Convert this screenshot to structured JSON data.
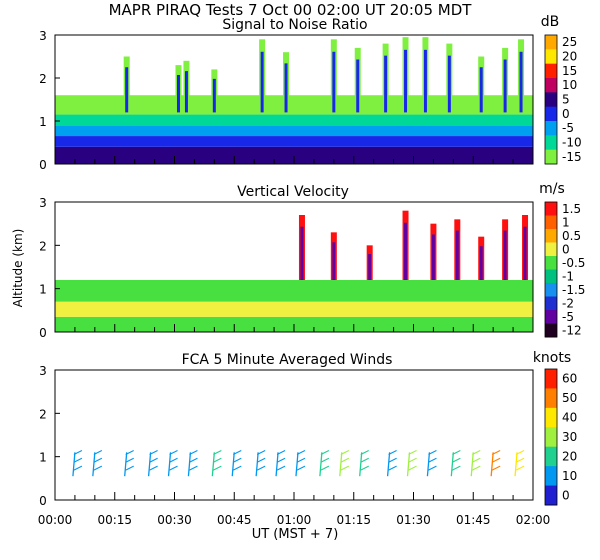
{
  "title": "MAPR PIRAQ Tests   7 Oct 00   02:00 UT   20:05   MDT",
  "shared_axes": {
    "x_label": "UT   (MST + 7)",
    "x_ticks": [
      "00:00",
      "00:15",
      "00:30",
      "00:45",
      "01:00",
      "01:15",
      "01:30",
      "01:45",
      "02:00"
    ],
    "x_range_minutes": [
      0,
      120
    ],
    "y_label": "Altitude (km)",
    "y_ticks": [
      "0",
      "1",
      "2",
      "3"
    ],
    "y_range_km": [
      0,
      3
    ]
  },
  "chart_data": [
    {
      "type": "heatmap",
      "title": "Signal to Noise Ratio",
      "unit": "dB",
      "colorbar": {
        "labels": [
          "25",
          "20",
          "15",
          "10",
          "5",
          "0",
          "-5",
          "-10",
          "-15"
        ],
        "colors": [
          "#ffa800",
          "#ffe800",
          "#ff2000",
          "#c00060",
          "#280080",
          "#1828e8",
          "#00a0f0",
          "#00d898",
          "#80f040"
        ]
      },
      "layers": [
        {
          "alt_km": [
            0.0,
            0.4
          ],
          "color": "#280080"
        },
        {
          "alt_km": [
            0.4,
            0.65
          ],
          "color": "#1828e8"
        },
        {
          "alt_km": [
            0.65,
            0.9
          ],
          "color": "#00a0f0"
        },
        {
          "alt_km": [
            0.9,
            1.15
          ],
          "color": "#00d898"
        },
        {
          "alt_km": [
            1.15,
            1.6
          ],
          "color": "#80f040"
        }
      ],
      "plumes": [
        {
          "t": 18,
          "top": 2.5
        },
        {
          "t": 31,
          "top": 2.3
        },
        {
          "t": 33,
          "top": 2.4
        },
        {
          "t": 40,
          "top": 2.2
        },
        {
          "t": 52,
          "top": 2.9
        },
        {
          "t": 58,
          "top": 2.6
        },
        {
          "t": 70,
          "top": 2.9
        },
        {
          "t": 76,
          "top": 2.7
        },
        {
          "t": 83,
          "top": 2.8
        },
        {
          "t": 88,
          "top": 2.95
        },
        {
          "t": 93,
          "top": 2.95
        },
        {
          "t": 99,
          "top": 2.8
        },
        {
          "t": 107,
          "top": 2.5
        },
        {
          "t": 113,
          "top": 2.7
        },
        {
          "t": 117,
          "top": 2.9
        }
      ]
    },
    {
      "type": "heatmap",
      "title": "Vertical Velocity",
      "unit": "m/s",
      "colorbar": {
        "labels": [
          "1.5",
          "1",
          "0.5",
          "0",
          "-0.5",
          "-1",
          "-1.5",
          "-2",
          "-5",
          "-12"
        ],
        "colors": [
          "#ff1010",
          "#ff6000",
          "#ffa800",
          "#f0f040",
          "#48e040",
          "#00c080",
          "#1890f0",
          "#2030d0",
          "#6000a0",
          "#200020"
        ]
      },
      "layers": [
        {
          "alt_km": [
            0.0,
            0.35
          ],
          "color": "#48e040"
        },
        {
          "alt_km": [
            0.35,
            0.7
          ],
          "color": "#f0f040"
        },
        {
          "alt_km": [
            0.7,
            1.2
          ],
          "color": "#48e040"
        }
      ],
      "plumes": [
        {
          "t": 62,
          "top": 2.7
        },
        {
          "t": 70,
          "top": 2.3
        },
        {
          "t": 79,
          "top": 2.0
        },
        {
          "t": 88,
          "top": 2.8
        },
        {
          "t": 95,
          "top": 2.5
        },
        {
          "t": 101,
          "top": 2.6
        },
        {
          "t": 107,
          "top": 2.2
        },
        {
          "t": 113,
          "top": 2.6
        },
        {
          "t": 118,
          "top": 2.7
        }
      ]
    },
    {
      "type": "wind_barbs",
      "title": "FCA 5 Minute Averaged Winds",
      "unit": "knots",
      "colorbar": {
        "labels": [
          "60",
          "50",
          "40",
          "30",
          "20",
          "10",
          "0"
        ],
        "colors": [
          "#ff2000",
          "#ff8000",
          "#ffe800",
          "#a0f040",
          "#20d090",
          "#0098f0",
          "#2020d0"
        ]
      },
      "profiles": [
        {
          "t": 5,
          "speed_kt": 8
        },
        {
          "t": 10,
          "speed_kt": 8
        },
        {
          "t": 18,
          "speed_kt": 10
        },
        {
          "t": 24,
          "speed_kt": 8
        },
        {
          "t": 29,
          "speed_kt": 10
        },
        {
          "t": 34,
          "speed_kt": 12
        },
        {
          "t": 40,
          "speed_kt": 15
        },
        {
          "t": 45,
          "speed_kt": 8
        },
        {
          "t": 51,
          "speed_kt": 8
        },
        {
          "t": 56,
          "speed_kt": 10
        },
        {
          "t": 61,
          "speed_kt": 10
        },
        {
          "t": 67,
          "speed_kt": 20
        },
        {
          "t": 72,
          "speed_kt": 30
        },
        {
          "t": 77,
          "speed_kt": 20
        },
        {
          "t": 84,
          "speed_kt": 10
        },
        {
          "t": 89,
          "speed_kt": 25
        },
        {
          "t": 94,
          "speed_kt": 10
        },
        {
          "t": 100,
          "speed_kt": 20
        },
        {
          "t": 105,
          "speed_kt": 30
        },
        {
          "t": 110,
          "speed_kt": 45
        },
        {
          "t": 116,
          "speed_kt": 40
        }
      ]
    }
  ]
}
